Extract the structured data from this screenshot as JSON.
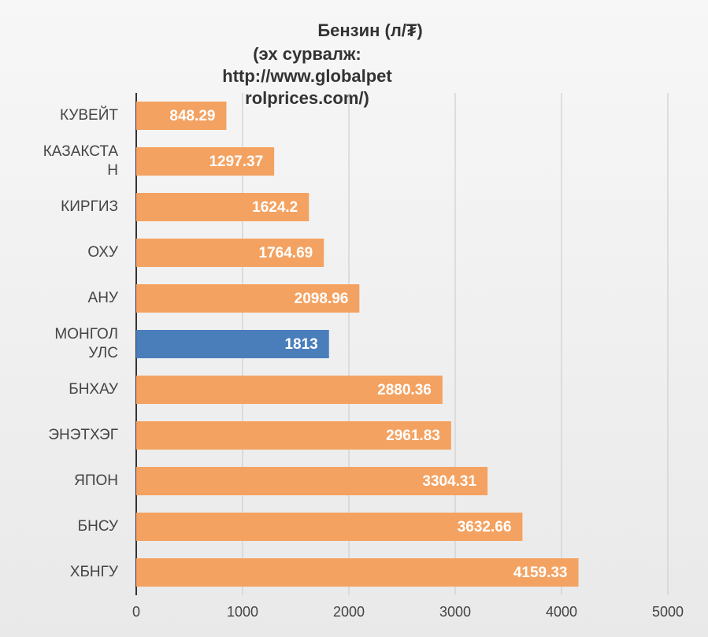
{
  "chart_data": {
    "type": "barh",
    "title": "Бензин (л/₮)",
    "subtitle": "(эх сурвалж: http://www.globalpetrolprices.com/)",
    "categories": [
      "КУВЕЙТ",
      "КАЗАКСТАН",
      "КИРГИЗ",
      "ОХУ",
      "АНУ",
      "МОНГОЛ УЛС",
      "БНХАУ",
      "ЭНЭТХЭГ",
      "ЯПОН",
      "БНСУ",
      "ХБНГУ"
    ],
    "values": [
      848.29,
      1297.37,
      1624.2,
      1764.69,
      2098.96,
      1813,
      2880.36,
      2961.83,
      3304.31,
      3632.66,
      4159.33
    ],
    "colors": [
      "#f4a261",
      "#f4a261",
      "#f4a261",
      "#f4a261",
      "#f4a261",
      "#4a7ebb",
      "#f4a261",
      "#f4a261",
      "#f4a261",
      "#f4a261",
      "#f4a261"
    ],
    "xlim": [
      0,
      5000
    ],
    "xticks": [
      0,
      1000,
      2000,
      3000,
      4000,
      5000
    ],
    "grid": true
  }
}
